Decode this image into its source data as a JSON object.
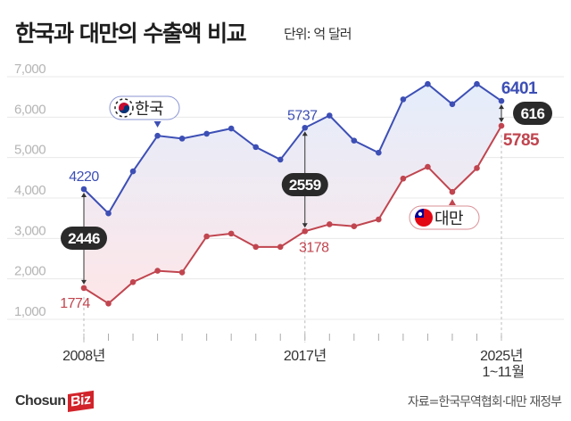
{
  "title": "한국과 대만의 수출액 비교",
  "unit": "단위: 억 달러",
  "source": "자료=한국무역협회·대만 재정부",
  "logo": "ChosunBiz",
  "colors": {
    "korea": "#3d4fb5",
    "taiwan": "#c0454f",
    "badge": "#2a2a2a",
    "grid": "#e8e8e8"
  },
  "chart_data": {
    "type": "line",
    "ylim": [
      1000,
      7000
    ],
    "yticks": [
      "1,000",
      "2,000",
      "3,000",
      "4,000",
      "5,000",
      "6,000",
      "7,000"
    ],
    "grid": true,
    "x": [
      2008,
      2009,
      2010,
      2011,
      2012,
      2013,
      2014,
      2015,
      2016,
      2017,
      2018,
      2019,
      2020,
      2021,
      2022,
      2023,
      2024,
      2025
    ],
    "xtick_labels": [
      {
        "year": 2008,
        "label": "2008년",
        "sub": ""
      },
      {
        "year": 2017,
        "label": "2017년",
        "sub": ""
      },
      {
        "year": 2025,
        "label": "2025년",
        "sub": "1~11월"
      }
    ],
    "series": [
      {
        "name": "한국",
        "key": "korea",
        "values": [
          4220,
          3620,
          4660,
          5540,
          5470,
          5590,
          5720,
          5260,
          4950,
          5737,
          6040,
          5420,
          5120,
          6440,
          6820,
          6320,
          6820,
          6401
        ]
      },
      {
        "name": "대만",
        "key": "taiwan",
        "values": [
          1774,
          1390,
          1920,
          2200,
          2160,
          3050,
          3120,
          2790,
          2790,
          3178,
          3350,
          3300,
          3470,
          4480,
          4770,
          4150,
          4740,
          5785
        ]
      }
    ],
    "data_labels": [
      {
        "year": 2008,
        "korea": "4220",
        "taiwan": "1774",
        "gap": "2446"
      },
      {
        "year": 2017,
        "korea": "5737",
        "taiwan": "3178",
        "gap": "2559"
      },
      {
        "year": 2025,
        "korea": "6401",
        "taiwan": "5785",
        "gap": "616"
      }
    ],
    "legend": [
      {
        "label": "한국",
        "flag": "south-korea-flag",
        "points_to": 2011
      },
      {
        "label": "대만",
        "flag": "taiwan-flag",
        "points_to": 2023
      }
    ]
  }
}
